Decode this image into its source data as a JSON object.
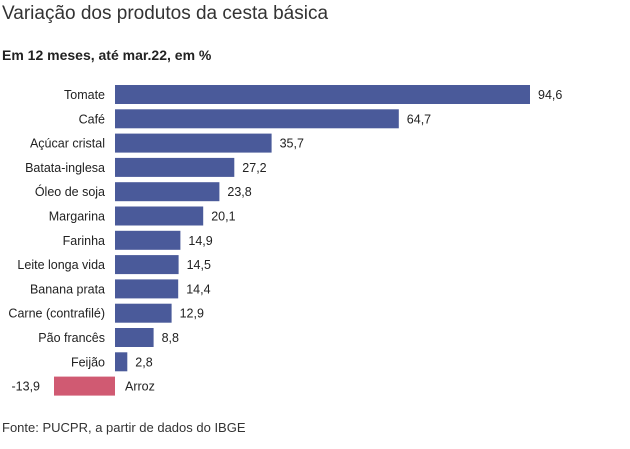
{
  "chart_data": {
    "type": "bar",
    "orientation": "horizontal",
    "title": "Variação dos produtos da cesta básica",
    "subtitle": "Em 12 meses, até mar.22, em %",
    "source": "Fonte: PUCPR, a partir de dados do IBGE",
    "categories": [
      "Tomate",
      "Café",
      "Açúcar cristal",
      "Batata-inglesa",
      "Óleo de soja",
      "Margarina",
      "Farinha",
      "Leite longa vida",
      "Banana prata",
      "Carne (contrafilé)",
      "Pão francês",
      "Feijão",
      "Arroz"
    ],
    "values": [
      94.6,
      64.7,
      35.7,
      27.2,
      23.8,
      20.1,
      14.9,
      14.5,
      14.4,
      12.9,
      8.8,
      2.8,
      -13.9
    ],
    "value_labels": [
      "94,6",
      "64,7",
      "35,7",
      "27,2",
      "23,8",
      "20,1",
      "14,9",
      "14,5",
      "14,4",
      "12,9",
      "8,8",
      "2,8",
      "-13,9"
    ],
    "colors": {
      "positive": "#4a5a9a",
      "negative": "#d05a72"
    },
    "xlim": [
      -13.9,
      94.6
    ],
    "grid": false,
    "legend": "none"
  }
}
